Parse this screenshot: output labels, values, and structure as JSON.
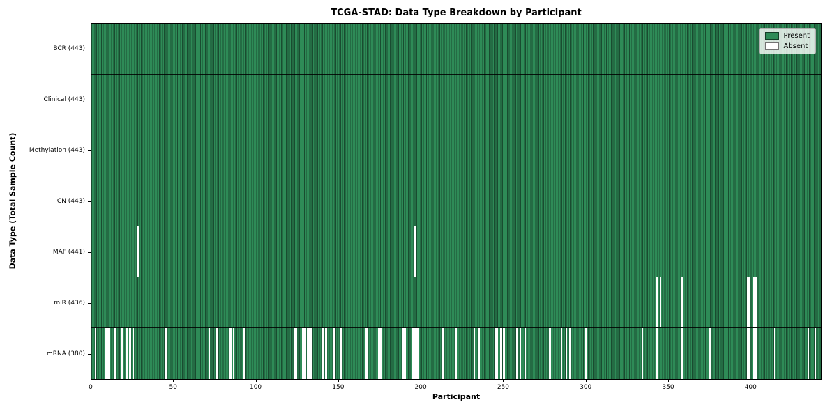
{
  "chart_data": {
    "type": "heatmap",
    "title": "TCGA-STAD: Data Type Breakdown by Participant",
    "xlabel": "Participant",
    "ylabel": "Data Type (Total Sample Count)",
    "x_range": [
      0,
      443
    ],
    "n_participants": 443,
    "x_ticks": [
      0,
      50,
      100,
      150,
      200,
      250,
      300,
      350,
      400
    ],
    "grid": "row-dividers-only",
    "legend": {
      "position": "upper right",
      "present_label": "Present",
      "absent_label": "Absent"
    },
    "colors": {
      "present": "#2e8b57",
      "present_edge": "rgba(0,0,0,0.45)",
      "absent": "#ffffff",
      "row_divider": "rgba(0,0,0,0.85)"
    },
    "rows": [
      {
        "label": "BCR (443)",
        "data_type": "BCR",
        "total_count": 443,
        "absent_participants": []
      },
      {
        "label": "Clinical (443)",
        "data_type": "Clinical",
        "total_count": 443,
        "absent_participants": []
      },
      {
        "label": "Methylation (443)",
        "data_type": "Methylation",
        "total_count": 443,
        "absent_participants": []
      },
      {
        "label": "CN (443)",
        "data_type": "CN",
        "total_count": 443,
        "absent_participants": []
      },
      {
        "label": "MAF (441)",
        "data_type": "MAF",
        "total_count": 441,
        "absent_participants": [
          28,
          196
        ]
      },
      {
        "label": "miR (436)",
        "data_type": "miR",
        "total_count": 436,
        "absent_participants": [
          343,
          345,
          358,
          398,
          399,
          402,
          403
        ]
      },
      {
        "label": "mRNA (380)",
        "data_type": "mRNA",
        "total_count": 380,
        "absent_participants": [
          2,
          8,
          9,
          10,
          14,
          18,
          21,
          23,
          25,
          45,
          71,
          76,
          84,
          86,
          92,
          123,
          124,
          128,
          129,
          131,
          132,
          133,
          140,
          142,
          147,
          151,
          166,
          167,
          174,
          175,
          189,
          190,
          195,
          196,
          197,
          198,
          213,
          221,
          232,
          235,
          245,
          246,
          248,
          250,
          258,
          260,
          263,
          278,
          285,
          288,
          290,
          300,
          334,
          343,
          358,
          375,
          398,
          399,
          402,
          403,
          414,
          435,
          439
        ]
      }
    ]
  }
}
